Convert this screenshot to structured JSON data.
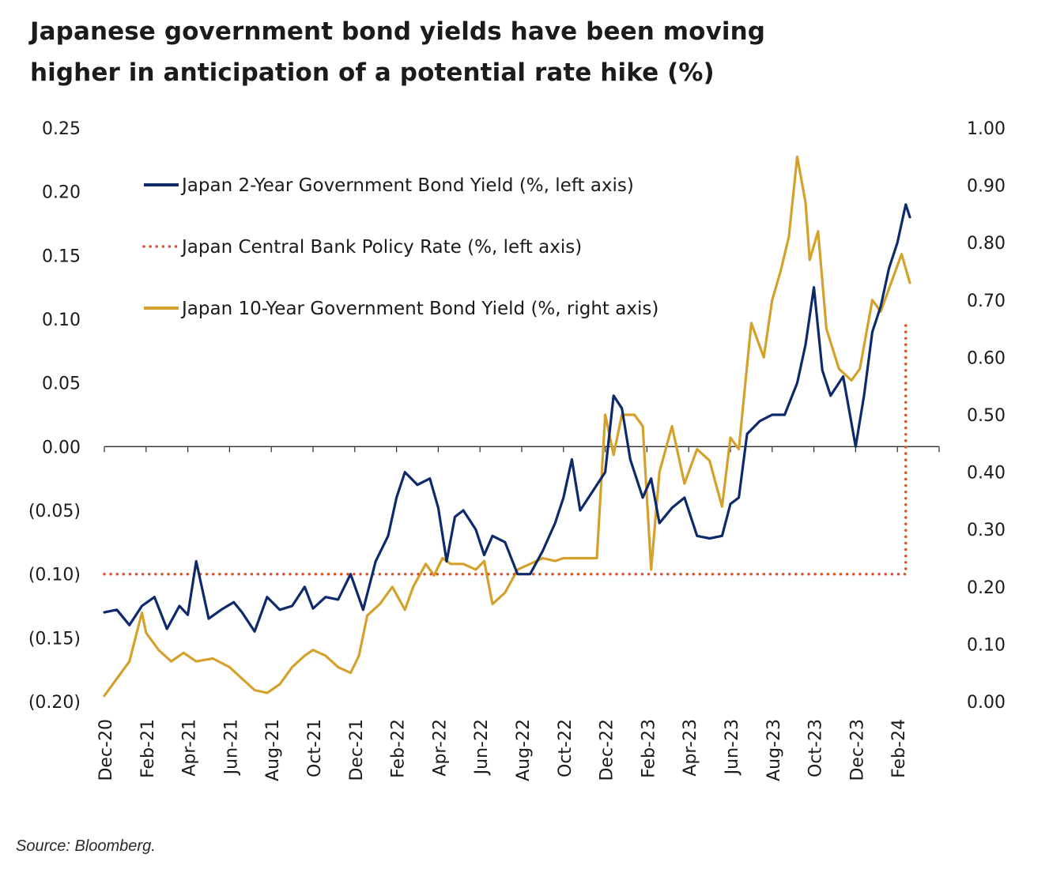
{
  "title": {
    "line1": "Japanese government bond yields have been moving",
    "line2": "higher in anticipation of a potential rate hike (%)"
  },
  "source": "Source: Bloomberg.",
  "chart_data": {
    "type": "line",
    "x_labels": [
      "Dec-20",
      "Feb-21",
      "Apr-21",
      "Jun-21",
      "Aug-21",
      "Oct-21",
      "Dec-21",
      "Feb-22",
      "Apr-22",
      "Jun-22",
      "Aug-22",
      "Oct-22",
      "Dec-22",
      "Feb-23",
      "Apr-23",
      "Jun-23",
      "Aug-23",
      "Oct-23",
      "Dec-23",
      "Feb-24"
    ],
    "y_left": {
      "range": [
        -0.2,
        0.25
      ],
      "ticks": [
        0.25,
        0.2,
        0.15,
        0.1,
        0.05,
        0.0,
        -0.05,
        -0.1,
        -0.15,
        -0.2
      ],
      "tick_labels": [
        "0.25",
        "0.20",
        "0.15",
        "0.10",
        "0.05",
        "0.00",
        "(0.05)",
        "(0.10)",
        "(0.15)",
        "(0.20)"
      ]
    },
    "y_right": {
      "range": [
        0.0,
        1.0
      ],
      "ticks": [
        1.0,
        0.9,
        0.8,
        0.7,
        0.6,
        0.5,
        0.4,
        0.3,
        0.2,
        0.1,
        0.0
      ],
      "tick_labels": [
        "1.00",
        "0.90",
        "0.80",
        "0.70",
        "0.60",
        "0.50",
        "0.40",
        "0.30",
        "0.20",
        "0.10",
        "0.00"
      ]
    },
    "legend_position": "top-left",
    "grid": false,
    "series": [
      {
        "name": "Japan 2-Year Government Bond Yield (%, left axis)",
        "axis": "left",
        "style": "solid",
        "color": "#0f2a6b",
        "x": [
          0,
          0.3,
          0.6,
          0.9,
          1.2,
          1.5,
          1.8,
          2.0,
          2.2,
          2.5,
          2.8,
          3.1,
          3.3,
          3.6,
          3.9,
          4.2,
          4.5,
          4.8,
          5.0,
          5.3,
          5.6,
          5.9,
          6.2,
          6.5,
          6.8,
          7.0,
          7.2,
          7.5,
          7.8,
          8.0,
          8.2,
          8.4,
          8.6,
          8.9,
          9.1,
          9.3,
          9.6,
          9.9,
          10.2,
          10.5,
          10.8,
          11.0,
          11.2,
          11.4,
          11.7,
          12.0,
          12.2,
          12.4,
          12.6,
          12.9,
          13.1,
          13.3,
          13.6,
          13.9,
          14.2,
          14.5,
          14.8,
          15.0,
          15.2,
          15.4,
          15.7,
          16.0,
          16.3,
          16.6,
          16.8,
          17.0,
          17.2,
          17.4,
          17.7,
          18.0,
          18.2,
          18.4,
          18.6,
          18.8,
          19.0,
          19.2,
          19.3
        ],
        "y": [
          -0.13,
          -0.128,
          -0.14,
          -0.125,
          -0.118,
          -0.143,
          -0.125,
          -0.132,
          -0.09,
          -0.135,
          -0.128,
          -0.122,
          -0.13,
          -0.145,
          -0.118,
          -0.128,
          -0.125,
          -0.11,
          -0.127,
          -0.118,
          -0.12,
          -0.1,
          -0.128,
          -0.09,
          -0.07,
          -0.04,
          -0.02,
          -0.03,
          -0.025,
          -0.048,
          -0.09,
          -0.055,
          -0.05,
          -0.065,
          -0.085,
          -0.07,
          -0.075,
          -0.1,
          -0.1,
          -0.082,
          -0.06,
          -0.04,
          -0.01,
          -0.05,
          -0.035,
          -0.02,
          0.04,
          0.03,
          -0.01,
          -0.04,
          -0.025,
          -0.06,
          -0.048,
          -0.04,
          -0.07,
          -0.072,
          -0.07,
          -0.045,
          -0.04,
          0.01,
          0.02,
          0.025,
          0.025,
          0.05,
          0.08,
          0.125,
          0.06,
          0.04,
          0.055,
          0.0,
          0.04,
          0.09,
          0.11,
          0.14,
          0.16,
          0.19,
          0.18
        ]
      },
      {
        "name": "Japan Central Bank Policy Rate (%, left axis)",
        "axis": "left",
        "style": "dotted",
        "color": "#d9542a",
        "x": [
          0,
          19.2,
          19.2
        ],
        "y": [
          -0.1,
          -0.1,
          0.1
        ]
      },
      {
        "name": "Japan 10-Year Government Bond Yield (%, right axis)",
        "axis": "right",
        "style": "solid",
        "color": "#d4a22c",
        "x": [
          0,
          0.3,
          0.6,
          0.9,
          1.0,
          1.3,
          1.6,
          1.9,
          2.2,
          2.6,
          3.0,
          3.3,
          3.6,
          3.9,
          4.2,
          4.5,
          4.8,
          5.0,
          5.3,
          5.6,
          5.9,
          6.1,
          6.3,
          6.6,
          6.9,
          7.2,
          7.4,
          7.7,
          7.9,
          8.1,
          8.3,
          8.6,
          8.9,
          9.1,
          9.3,
          9.6,
          9.9,
          10.2,
          10.5,
          10.8,
          11.0,
          11.3,
          11.6,
          11.8,
          12.0,
          12.2,
          12.4,
          12.7,
          12.9,
          13.1,
          13.3,
          13.6,
          13.9,
          14.2,
          14.5,
          14.8,
          15.0,
          15.2,
          15.5,
          15.8,
          16.0,
          16.2,
          16.4,
          16.6,
          16.8,
          16.9,
          17.1,
          17.3,
          17.6,
          17.9,
          18.1,
          18.4,
          18.6,
          18.9,
          19.1,
          19.3
        ],
        "y": [
          0.01,
          0.04,
          0.07,
          0.155,
          0.12,
          0.09,
          0.07,
          0.085,
          0.07,
          0.075,
          0.06,
          0.04,
          0.02,
          0.015,
          0.03,
          0.06,
          0.08,
          0.09,
          0.08,
          0.06,
          0.05,
          0.08,
          0.15,
          0.17,
          0.2,
          0.16,
          0.2,
          0.24,
          0.22,
          0.25,
          0.24,
          0.24,
          0.23,
          0.245,
          0.17,
          0.19,
          0.23,
          0.24,
          0.25,
          0.245,
          0.25,
          0.25,
          0.25,
          0.25,
          0.5,
          0.43,
          0.5,
          0.5,
          0.48,
          0.23,
          0.4,
          0.48,
          0.38,
          0.44,
          0.42,
          0.34,
          0.46,
          0.44,
          0.66,
          0.6,
          0.7,
          0.75,
          0.81,
          0.95,
          0.87,
          0.77,
          0.82,
          0.65,
          0.58,
          0.56,
          0.58,
          0.7,
          0.68,
          0.74,
          0.78,
          0.73
        ]
      }
    ]
  }
}
